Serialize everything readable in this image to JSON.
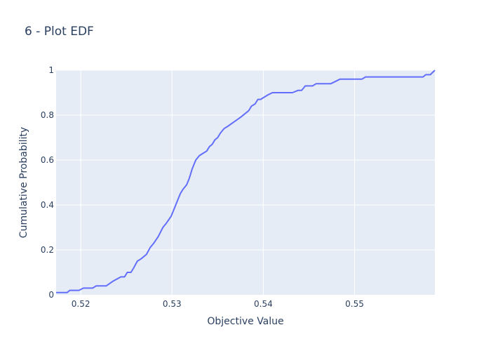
{
  "chart_data": {
    "type": "line",
    "title": "6 - Plot EDF",
    "xlabel": "Objective Value",
    "ylabel": "Cumulative Probability",
    "xlim": [
      0.5173,
      0.5588
    ],
    "ylim": [
      0,
      1
    ],
    "x_ticks": [
      0.52,
      0.53,
      0.54,
      0.55
    ],
    "x_tick_labels": [
      "0.52",
      "0.53",
      "0.54",
      "0.55"
    ],
    "y_ticks": [
      0,
      0.2,
      0.4,
      0.6,
      0.8,
      1
    ],
    "y_tick_labels": [
      "0",
      "0.2",
      "0.4",
      "0.6",
      "0.8",
      "1"
    ],
    "grid": true,
    "colors": {
      "plot_bg": "#e5ecf6",
      "grid": "#ffffff",
      "line": "#636efa",
      "text": "#2a3f5f"
    },
    "series": [
      {
        "x": [
          0.5173,
          0.5185,
          0.5188,
          0.5198,
          0.5203,
          0.5213,
          0.5217,
          0.5228,
          0.5235,
          0.5244,
          0.5248,
          0.5251,
          0.5255,
          0.5258,
          0.5262,
          0.5266,
          0.5272,
          0.5276,
          0.528,
          0.5285,
          0.529,
          0.5294,
          0.5299,
          0.5303,
          0.5306,
          0.5309,
          0.5312,
          0.5316,
          0.5319,
          0.5322,
          0.5326,
          0.533,
          0.5334,
          0.5338,
          0.5341,
          0.5344,
          0.5347,
          0.535,
          0.5353,
          0.5357,
          0.5361,
          0.5368,
          0.5375,
          0.5381,
          0.5384,
          0.5387,
          0.5391,
          0.5394,
          0.5397,
          0.5401,
          0.5405,
          0.541,
          0.5419,
          0.5432,
          0.5438,
          0.5442,
          0.5446,
          0.5449,
          0.5454,
          0.5458,
          0.5462,
          0.5474,
          0.5484,
          0.5492,
          0.5503,
          0.5508,
          0.5512,
          0.5575,
          0.5578,
          0.5583,
          0.5588
        ],
        "y": [
          0.01,
          0.01,
          0.02,
          0.02,
          0.03,
          0.03,
          0.04,
          0.04,
          0.06,
          0.08,
          0.08,
          0.1,
          0.1,
          0.12,
          0.15,
          0.16,
          0.18,
          0.21,
          0.23,
          0.26,
          0.3,
          0.32,
          0.35,
          0.39,
          0.42,
          0.45,
          0.47,
          0.49,
          0.52,
          0.56,
          0.6,
          0.62,
          0.63,
          0.64,
          0.66,
          0.67,
          0.69,
          0.7,
          0.72,
          0.74,
          0.75,
          0.77,
          0.79,
          0.81,
          0.82,
          0.84,
          0.85,
          0.87,
          0.87,
          0.88,
          0.89,
          0.9,
          0.9,
          0.9,
          0.91,
          0.91,
          0.93,
          0.93,
          0.93,
          0.94,
          0.94,
          0.94,
          0.96,
          0.96,
          0.96,
          0.96,
          0.97,
          0.97,
          0.98,
          0.98,
          1.0
        ]
      }
    ]
  }
}
